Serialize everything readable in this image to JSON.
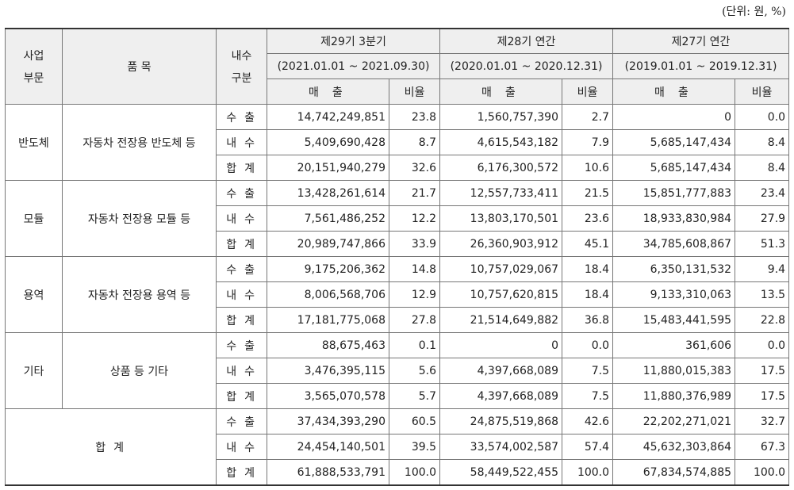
{
  "unit_label": "(단위: 원, %)",
  "headers": {
    "segment": [
      "사업",
      "부문"
    ],
    "product": "품 목",
    "domestic": [
      "내수",
      "구분"
    ],
    "periods": [
      {
        "name": "제29기 3분기",
        "range": "(2021.01.01 ~ 2021.09.30)"
      },
      {
        "name": "제28기 연간",
        "range": "(2020.01.01 ~ 2020.12.31)"
      },
      {
        "name": "제27기 연간",
        "range": "(2019.01.01 ~ 2019.12.31)"
      }
    ],
    "sales": "매 출",
    "ratio": "비율"
  },
  "groups": [
    {
      "segment": "반도체",
      "product": "자동차 전장용 반도체 등",
      "rows": [
        {
          "type": "수 출",
          "v": [
            "14,742,249,851",
            "23.8",
            "1,560,757,390",
            "2.7",
            "0",
            "0.0"
          ]
        },
        {
          "type": "내 수",
          "v": [
            "5,409,690,428",
            "8.7",
            "4,615,543,182",
            "7.9",
            "5,685,147,434",
            "8.4"
          ]
        },
        {
          "type": "합 계",
          "v": [
            "20,151,940,279",
            "32.6",
            "6,176,300,572",
            "10.6",
            "5,685,147,434",
            "8.4"
          ]
        }
      ]
    },
    {
      "segment": "모듈",
      "product": "자동차 전장용 모듈 등",
      "rows": [
        {
          "type": "수 출",
          "v": [
            "13,428,261,614",
            "21.7",
            "12,557,733,411",
            "21.5",
            "15,851,777,883",
            "23.4"
          ]
        },
        {
          "type": "내 수",
          "v": [
            "7,561,486,252",
            "12.2",
            "13,803,170,501",
            "23.6",
            "18,933,830,984",
            "27.9"
          ]
        },
        {
          "type": "합 계",
          "v": [
            "20,989,747,866",
            "33.9",
            "26,360,903,912",
            "45.1",
            "34,785,608,867",
            "51.3"
          ]
        }
      ]
    },
    {
      "segment": "용역",
      "product": "자동차 전장용 용역 등",
      "rows": [
        {
          "type": "수 출",
          "v": [
            "9,175,206,362",
            "14.8",
            "10,757,029,067",
            "18.4",
            "6,350,131,532",
            "9.4"
          ]
        },
        {
          "type": "내 수",
          "v": [
            "8,006,568,706",
            "12.9",
            "10,757,620,815",
            "18.4",
            "9,133,310,063",
            "13.5"
          ]
        },
        {
          "type": "합 계",
          "v": [
            "17,181,775,068",
            "27.8",
            "21,514,649,882",
            "36.8",
            "15,483,441,595",
            "22.8"
          ]
        }
      ]
    },
    {
      "segment": "기타",
      "product": "상품 등 기타",
      "rows": [
        {
          "type": "수 출",
          "v": [
            "88,675,463",
            "0.1",
            "0",
            "0.0",
            "361,606",
            "0.0"
          ]
        },
        {
          "type": "내 수",
          "v": [
            "3,476,395,115",
            "5.6",
            "4,397,668,089",
            "7.5",
            "11,880,015,383",
            "17.5"
          ]
        },
        {
          "type": "합 계",
          "v": [
            "3,565,070,578",
            "5.7",
            "4,397,668,089",
            "7.5",
            "11,880,376,989",
            "17.5"
          ]
        }
      ]
    }
  ],
  "total": {
    "label": "합 계",
    "rows": [
      {
        "type": "수 출",
        "v": [
          "37,434,393,290",
          "60.5",
          "24,875,519,868",
          "42.6",
          "22,202,271,021",
          "32.7"
        ]
      },
      {
        "type": "내 수",
        "v": [
          "24,454,140,501",
          "39.5",
          "33,574,002,587",
          "57.4",
          "45,632,303,864",
          "67.3"
        ]
      },
      {
        "type": "합 계",
        "v": [
          "61,888,533,791",
          "100.0",
          "58,449,522,455",
          "100.0",
          "67,834,574,885",
          "100.0"
        ]
      }
    ]
  }
}
